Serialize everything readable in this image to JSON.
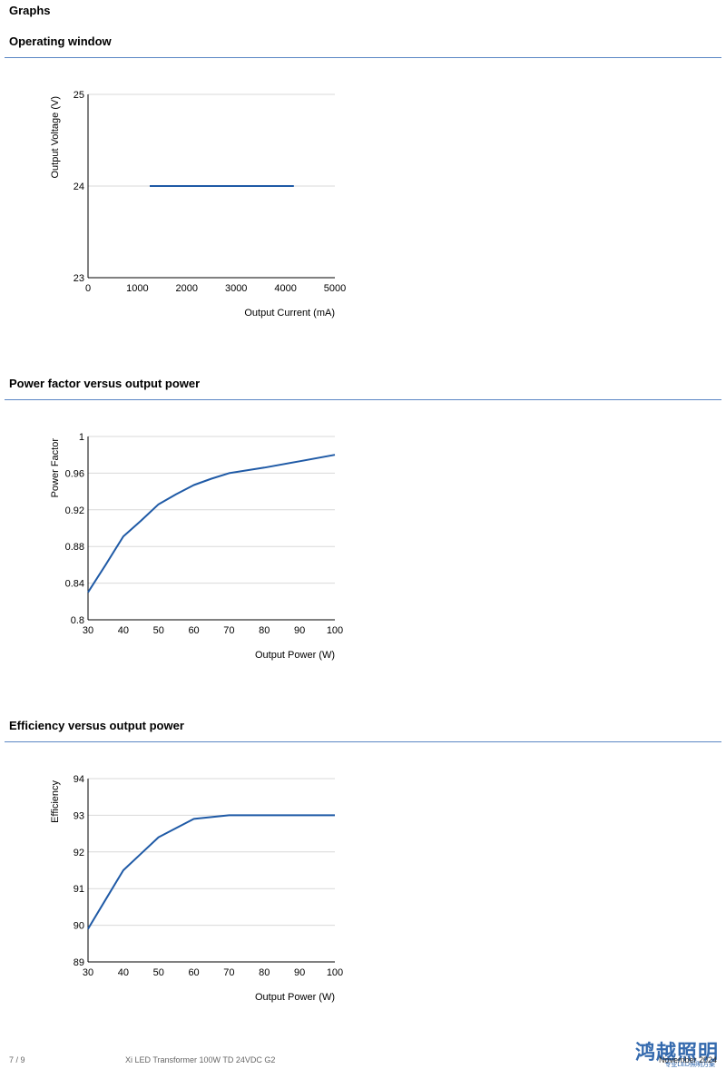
{
  "page": {
    "heading": "Graphs"
  },
  "sections": [
    {
      "title": "Operating window",
      "chart_index": 0
    },
    {
      "title": "Power factor versus output power",
      "chart_index": 1
    },
    {
      "title": "Efficiency versus output power",
      "chart_index": 2
    }
  ],
  "chart_data": [
    {
      "type": "line",
      "xlabel": "Output Current (mA)",
      "ylabel": "Output Voltage (V)",
      "xlim": [
        0,
        5000
      ],
      "ylim": [
        23,
        25
      ],
      "xticks": [
        0,
        1000,
        2000,
        3000,
        4000,
        5000
      ],
      "yticks": [
        23,
        24,
        25
      ],
      "ytick_labels": [
        "23",
        "24",
        "25"
      ],
      "grid": true,
      "series": [
        {
          "x": [
            1250,
            4170
          ],
          "y": [
            24,
            24
          ],
          "color": "#1f5aa6"
        }
      ]
    },
    {
      "type": "line",
      "xlabel": "Output Power (W)",
      "ylabel": "Power Factor",
      "xlim": [
        30,
        100
      ],
      "ylim": [
        0.8,
        1
      ],
      "xticks": [
        30,
        40,
        50,
        60,
        70,
        80,
        90,
        100
      ],
      "yticks": [
        0.8,
        0.84,
        0.88,
        0.92,
        0.96,
        1
      ],
      "ytick_labels": [
        "0.8",
        "0.84",
        "0.88",
        "0.92",
        "0.96",
        "1"
      ],
      "grid": true,
      "series": [
        {
          "x": [
            30,
            35,
            40,
            45,
            50,
            55,
            60,
            65,
            70,
            80,
            90,
            100
          ],
          "y": [
            0.83,
            0.86,
            0.891,
            0.908,
            0.926,
            0.937,
            0.947,
            0.954,
            0.96,
            0.966,
            0.973,
            0.98
          ],
          "color": "#1f5aa6"
        }
      ]
    },
    {
      "type": "line",
      "xlabel": "Output Power (W)",
      "ylabel": "Efficiency",
      "xlim": [
        30,
        100
      ],
      "ylim": [
        89,
        94
      ],
      "xticks": [
        30,
        40,
        50,
        60,
        70,
        80,
        90,
        100
      ],
      "yticks": [
        89,
        90,
        91,
        92,
        93,
        94
      ],
      "ytick_labels": [
        "89",
        "90",
        "91",
        "92",
        "93",
        "94"
      ],
      "grid": true,
      "series": [
        {
          "x": [
            30,
            35,
            40,
            45,
            50,
            55,
            60,
            70,
            80,
            90,
            100
          ],
          "y": [
            89.9,
            90.7,
            91.5,
            91.95,
            92.4,
            92.65,
            92.9,
            93,
            93,
            93,
            93
          ],
          "color": "#1f5aa6"
        }
      ]
    }
  ],
  "footer": {
    "page_number": "7 / 9",
    "product_name": "Xi LED Transformer 100W TD 24VDC G2",
    "date": "November 2024"
  },
  "watermark": {
    "text": "鸿越照明",
    "subtext": "专业LED照明方案"
  },
  "colors": {
    "accent": "#1f5aa6",
    "rule": "#5b86c4",
    "grid": "#d9d9d9",
    "axis": "#000000"
  }
}
